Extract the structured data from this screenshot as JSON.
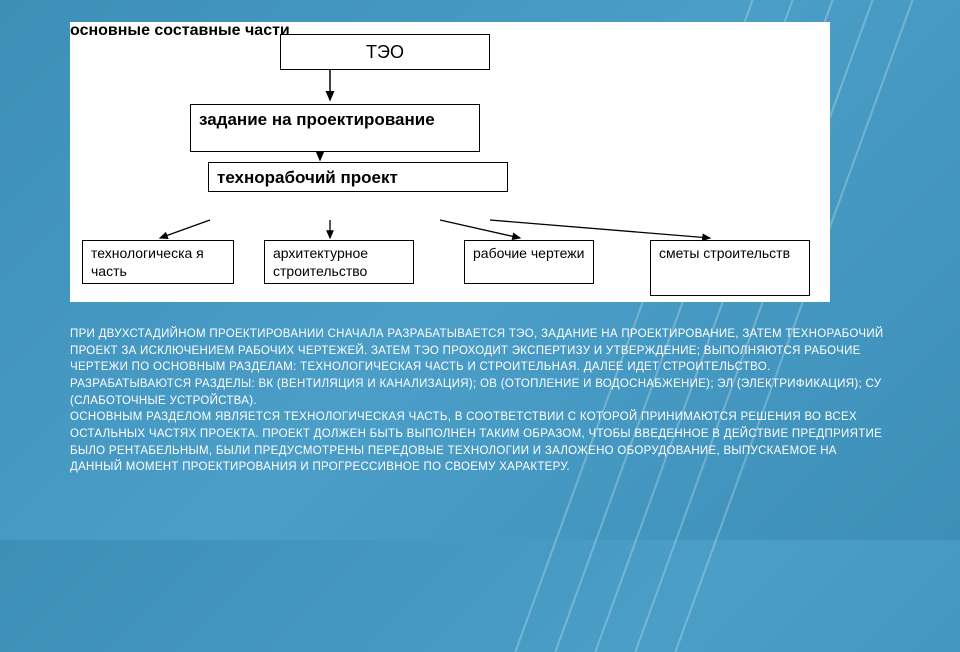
{
  "diagram": {
    "type": "flowchart",
    "background_color": "#ffffff",
    "border_color": "#000000",
    "nodes": {
      "teo": {
        "label": "ТЭО"
      },
      "zadanie": {
        "label": "задание на проектирование"
      },
      "tehno": {
        "label": "технорабочий проект"
      },
      "sostav": {
        "label": "основные составные части"
      },
      "techpart": {
        "label": "технологическа я часть"
      },
      "arch": {
        "label": "архитектурное строительство"
      },
      "rabchert": {
        "label": "рабочие чертежи"
      },
      "smety": {
        "label": "сметы строительств"
      }
    },
    "edges": [
      {
        "from": "teo",
        "to": "zadanie"
      },
      {
        "from": "zadanie",
        "to": "tehno"
      },
      {
        "from": "tehno",
        "to": "sostav"
      },
      {
        "from": "sostav",
        "to": "techpart"
      },
      {
        "from": "sostav",
        "to": "arch"
      },
      {
        "from": "sostav",
        "to": "rabchert"
      },
      {
        "from": "sostav",
        "to": "smety"
      }
    ]
  },
  "paragraph": {
    "text": "ПРИ ДВУХСТАДИЙНОМ ПРОЕКТИРОВАНИИ СНАЧАЛА РАЗРАБАТЫВАЕТСЯ ТЭО, ЗАДАНИЕ НА ПРОЕКТИРОВАНИЕ, ЗАТЕМ ТЕХНОРАБОЧИЙ ПРОЕКТ ЗА ИСКЛЮЧЕНИЕМ РАБОЧИХ ЧЕРТЕЖЕЙ. ЗАТЕМ ТЭО ПРОХОДИТ ЭКСПЕРТИЗУ И УТВЕРЖДЕНИЕ; ВЫПОЛНЯЮТСЯ РАБОЧИЕ ЧЕРТЕЖИ ПО ОСНОВНЫМ РАЗДЕЛАМ: ТЕХНОЛОГИЧЕСКАЯ ЧАСТЬ И СТРОИТЕЛЬНАЯ. ДАЛЕЕ ИДЕТ СТРОИТЕЛЬСТВО.\nРАЗРАБАТЫВАЮТСЯ РАЗДЕЛЫ: ВК (ВЕНТИЛЯЦИЯ И КАНАЛИЗАЦИЯ); ОВ (ОТОПЛЕНИЕ И ВОДОСНАБЖЕНИЕ); ЭЛ (ЭЛЕКТРИФИКАЦИЯ); СУ (СЛАБОТОЧНЫЕ УСТРОЙСТВА).\nОСНОВНЫМ РАЗДЕЛОМ ЯВЛЯЕТСЯ ТЕХНОЛОГИЧЕСКАЯ ЧАСТЬ, В СООТВЕТСТВИИ С КОТОРОЙ ПРИНИМАЮТСЯ РЕШЕНИЯ ВО ВСЕХ ОСТАЛЬНЫХ ЧАСТЯХ ПРОЕКТА. ПРОЕКТ ДОЛЖЕН БЫТЬ ВЫПОЛНЕН ТАКИМ ОБРАЗОМ, ЧТОБЫ ВВЕДЕННОЕ В ДЕЙСТВИЕ ПРЕДПРИЯТИЕ БЫЛО РЕНТАБЕЛЬНЫМ, БЫЛИ ПРЕДУСМОТРЕНЫ ПЕРЕДОВЫЕ ТЕХНОЛОГИИ И ЗАЛОЖЕНО ОБОРУДОВАНИЕ, ВЫПУСКАЕМОЕ НА ДАННЫЙ МОМЕНТ ПРОЕКТИРОВАНИЯ И ПРОГРЕССИВНОЕ ПО СВОЕМУ ХАРАКТЕРУ."
  },
  "slide": {
    "bg_gradient_from": "#3d8fb8",
    "bg_gradient_to": "#4a9ec7",
    "text_color": "#ffffff",
    "diagonal_line_color": "rgba(255,255,255,0.25)"
  }
}
